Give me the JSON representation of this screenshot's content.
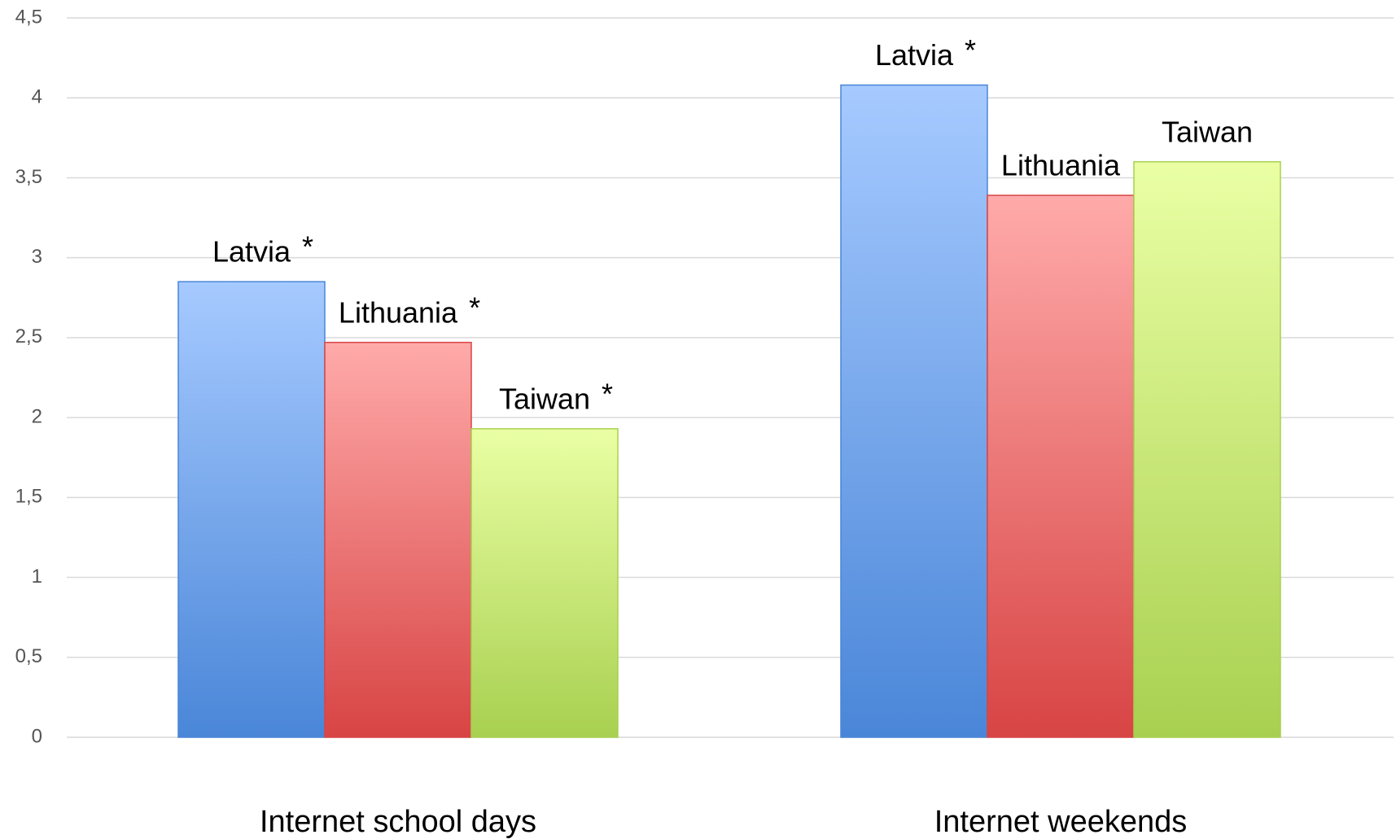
{
  "chart_data": {
    "type": "bar",
    "categories": [
      "Internet school days",
      "Internet weekends"
    ],
    "series": [
      {
        "name": "Latvia",
        "color": "#4a86d8",
        "color_top": "#a6caff",
        "values": [
          2.85,
          4.08
        ],
        "marks": [
          "*",
          "*"
        ]
      },
      {
        "name": "Lithuania",
        "color": "#d84444",
        "color_top": "#ffaaaa",
        "values": [
          2.47,
          3.39
        ],
        "marks": [
          "*",
          null
        ]
      },
      {
        "name": "Taiwan",
        "color": "#a8d050",
        "color_top": "#eaffa4",
        "values": [
          1.93,
          3.6
        ],
        "marks": [
          "*",
          null
        ]
      }
    ],
    "ylim": [
      0,
      4.5
    ],
    "yticks": [
      0,
      {
        "value": 0.5,
        "label": "0,5"
      },
      1,
      {
        "value": 1.5,
        "label": "1,5"
      },
      2,
      {
        "value": 2.5,
        "label": "2,5"
      },
      3,
      {
        "value": 3.5,
        "label": "3,5"
      },
      4,
      {
        "value": 4.5,
        "label": "4,5"
      }
    ],
    "grid": true
  }
}
